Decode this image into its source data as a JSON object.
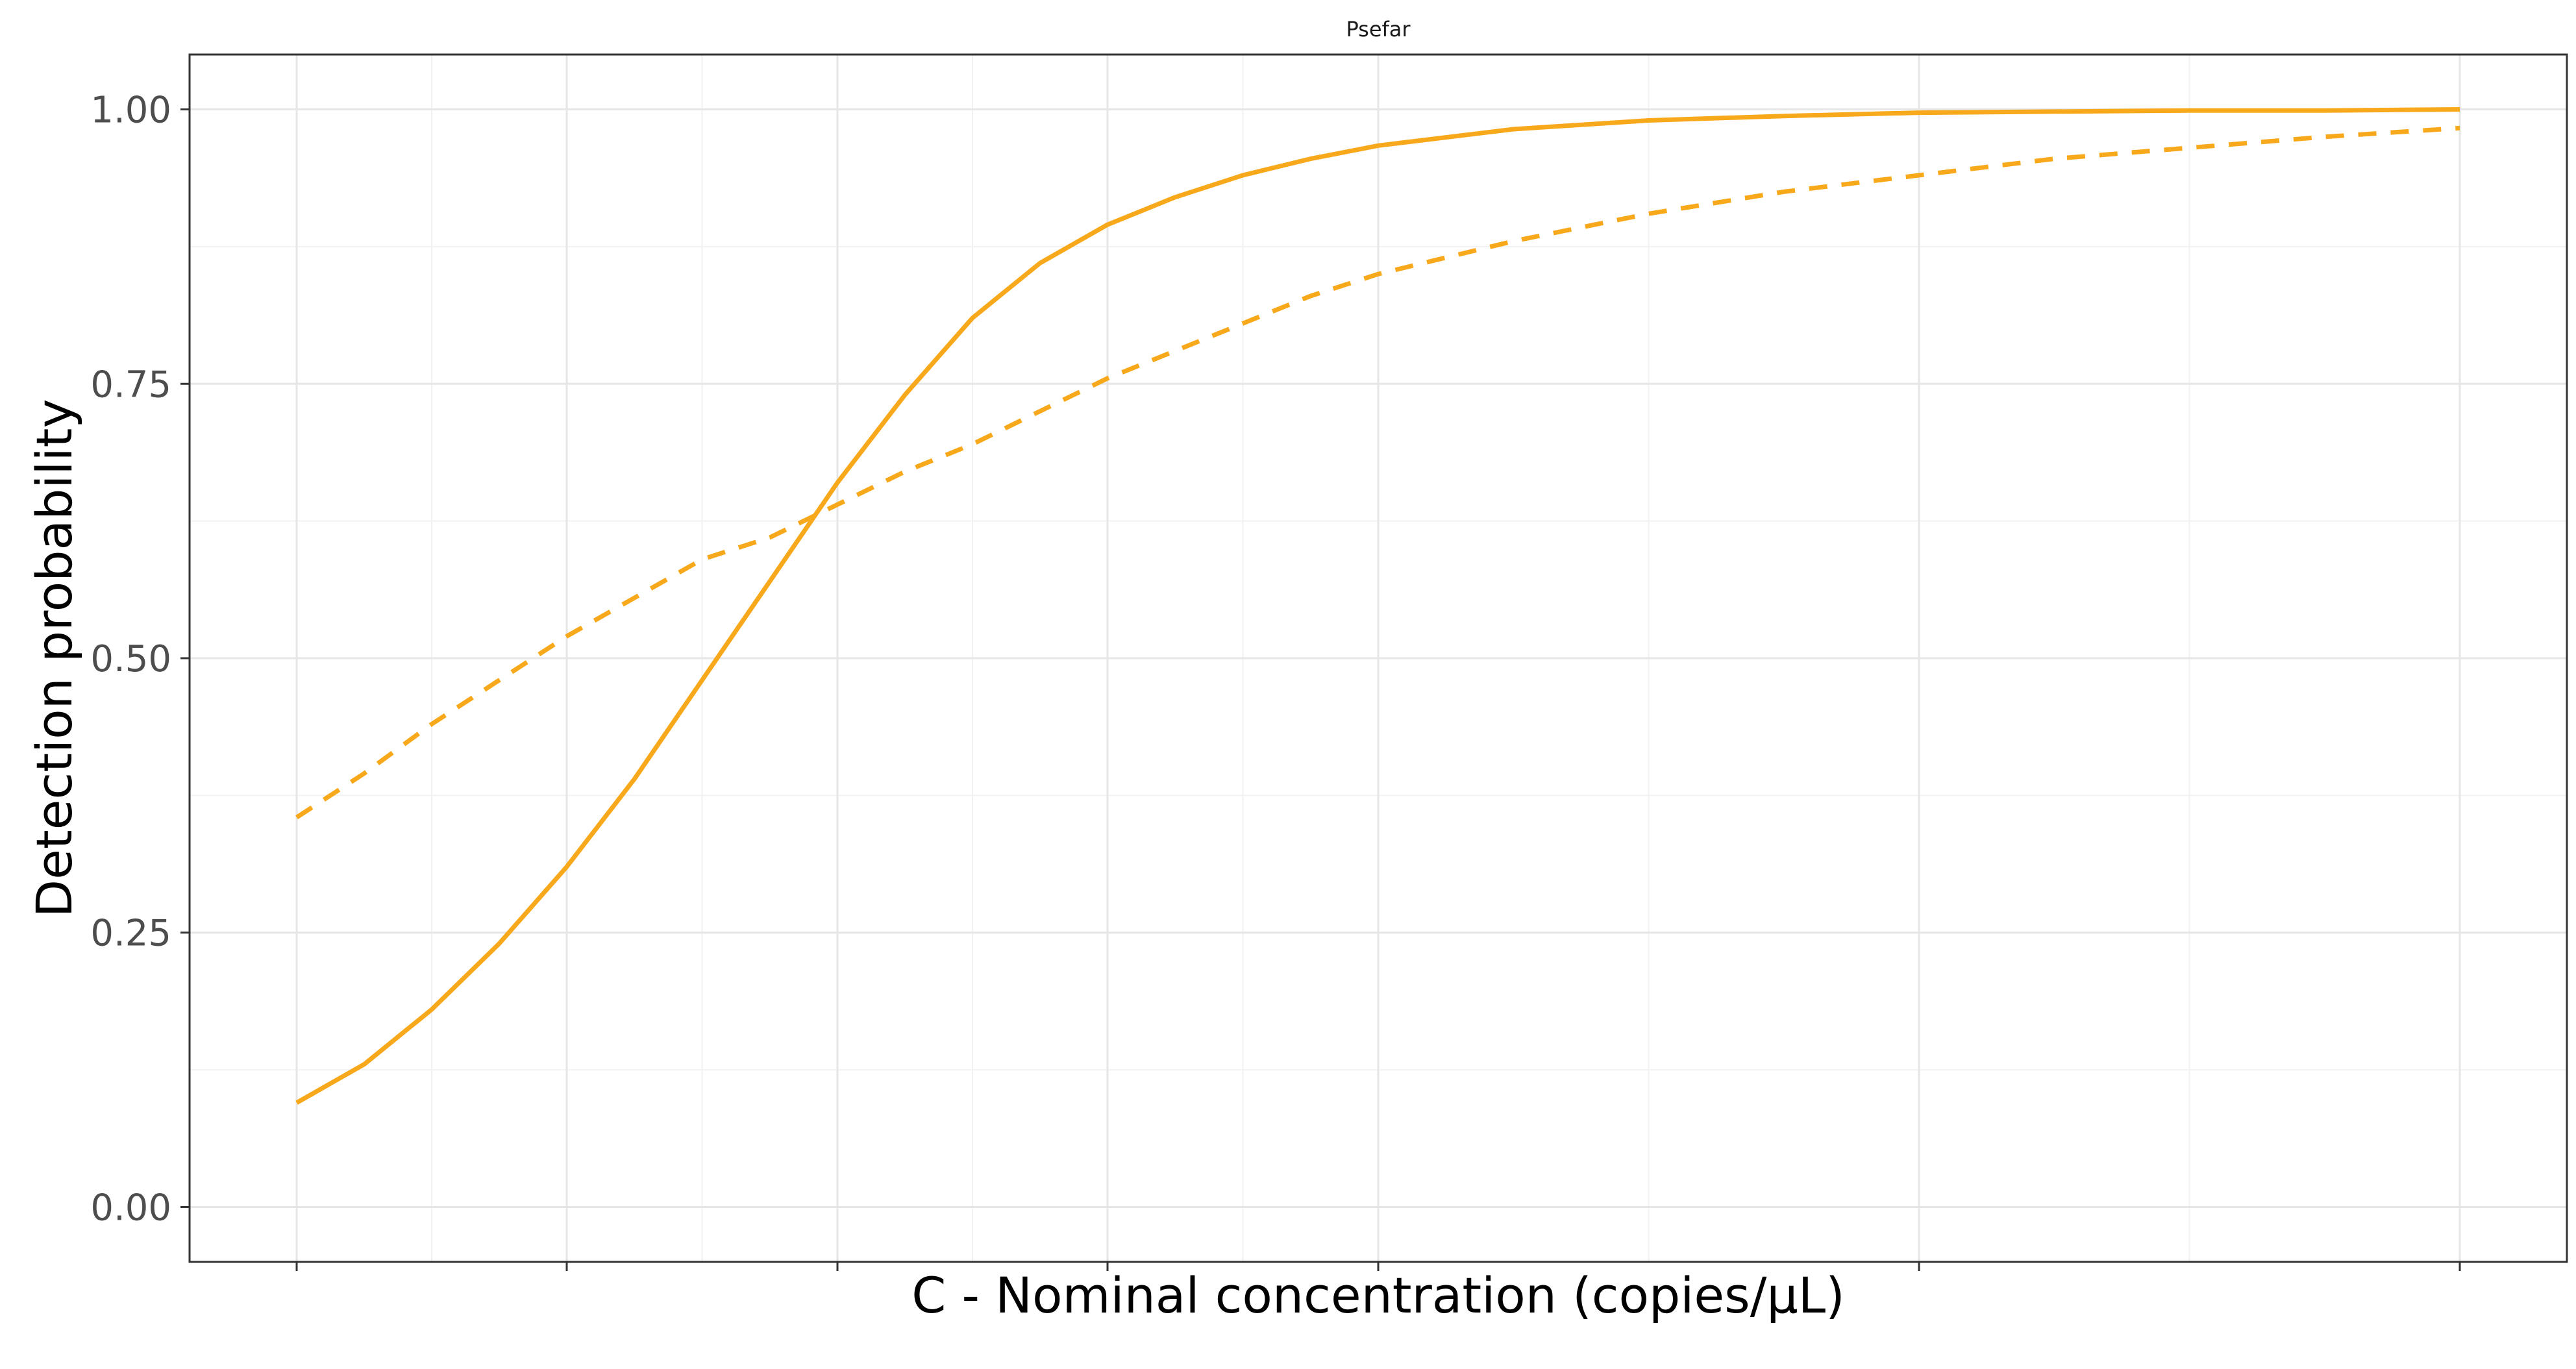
{
  "chart_data": {
    "type": "line",
    "title": "Psefar",
    "xlabel": "C - Nominal concentration (copies/µL)",
    "ylabel": "Detection probability",
    "xlim": [
      0,
      8
    ],
    "ylim": [
      -0.05,
      1.05
    ],
    "x_ticks": [
      0,
      1,
      2,
      3,
      4,
      6,
      8
    ],
    "x_tick_labels": [
      "",
      "",
      "",
      "",
      "",
      "",
      ""
    ],
    "y_ticks": [
      0,
      0.25,
      0.5,
      0.75,
      1.0
    ],
    "y_tick_labels": [
      "0.00",
      "0.25",
      "0.50",
      "0.75",
      "1.00"
    ],
    "grid": true,
    "legend": "none",
    "series": [
      {
        "style": "solid",
        "color": "#F7A81B",
        "x": [
          0,
          0.25,
          0.5,
          0.75,
          1.0,
          1.25,
          1.5,
          1.75,
          2.0,
          2.25,
          2.5,
          2.75,
          3.0,
          3.25,
          3.5,
          3.75,
          4.0,
          4.5,
          5.0,
          5.5,
          6.0,
          6.5,
          7.0,
          7.5,
          8.0
        ],
        "y": [
          0.095,
          0.13,
          0.18,
          0.24,
          0.31,
          0.39,
          0.48,
          0.57,
          0.66,
          0.74,
          0.81,
          0.86,
          0.895,
          0.92,
          0.94,
          0.955,
          0.967,
          0.982,
          0.99,
          0.994,
          0.997,
          0.998,
          0.999,
          0.999,
          1.0
        ],
        "values": [
          0.095,
          0.13,
          0.18,
          0.24,
          0.31,
          0.39,
          0.48,
          0.57,
          0.66,
          0.74,
          0.81,
          0.86,
          0.895,
          0.92,
          0.94,
          0.955,
          0.967,
          0.982,
          0.99,
          0.994,
          0.997,
          0.998,
          0.999,
          0.999,
          1.0
        ]
      },
      {
        "style": "dashed",
        "color": "#F7A81B",
        "x": [
          0,
          0.25,
          0.5,
          0.75,
          1.0,
          1.25,
          1.5,
          1.75,
          2.0,
          2.25,
          2.5,
          2.75,
          3.0,
          3.25,
          3.5,
          3.75,
          4.0,
          4.5,
          5.0,
          5.5,
          6.0,
          6.5,
          7.0,
          7.5,
          8.0
        ],
        "y": [
          0.355,
          0.395,
          0.44,
          0.48,
          0.52,
          0.555,
          0.59,
          0.61,
          0.64,
          0.67,
          0.695,
          0.725,
          0.755,
          0.78,
          0.805,
          0.83,
          0.85,
          0.88,
          0.905,
          0.925,
          0.94,
          0.955,
          0.965,
          0.975,
          0.983
        ],
        "values": [
          0.355,
          0.395,
          0.44,
          0.48,
          0.52,
          0.555,
          0.59,
          0.61,
          0.64,
          0.67,
          0.695,
          0.725,
          0.755,
          0.78,
          0.805,
          0.83,
          0.85,
          0.88,
          0.905,
          0.925,
          0.94,
          0.955,
          0.965,
          0.975,
          0.983
        ]
      }
    ]
  }
}
